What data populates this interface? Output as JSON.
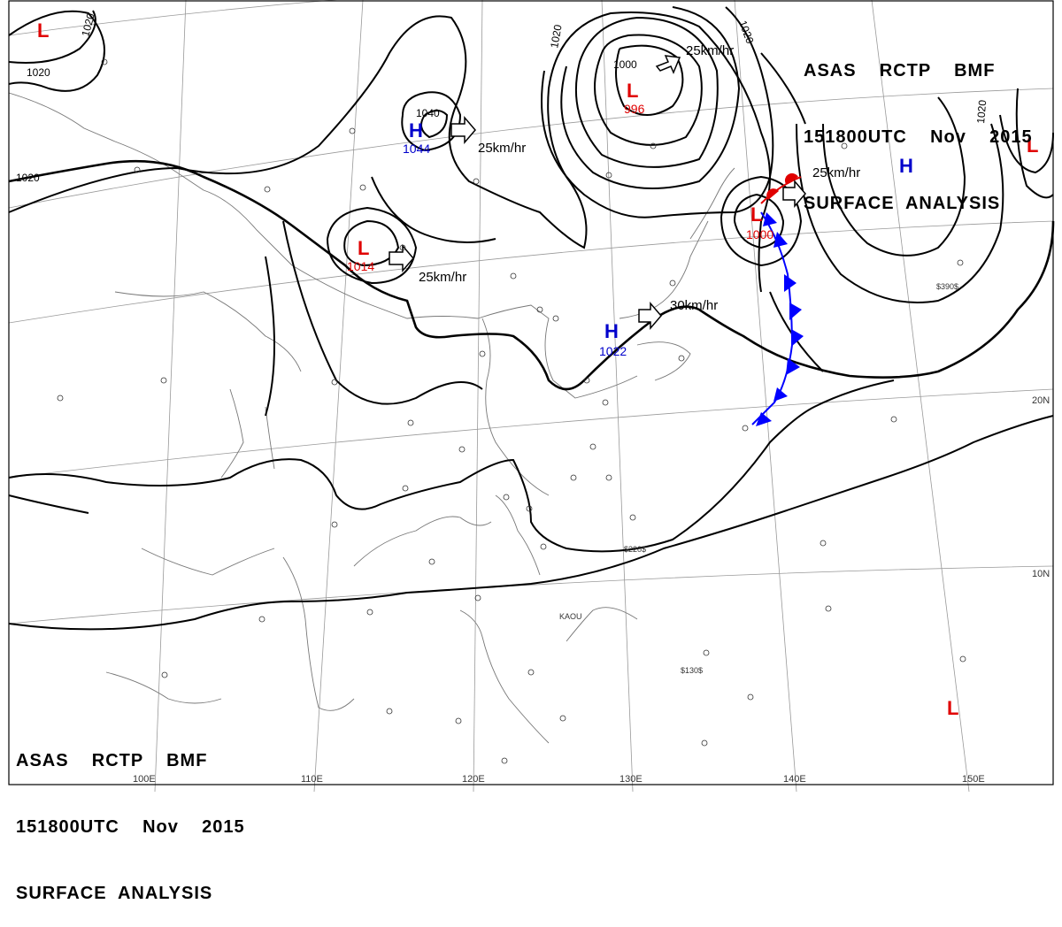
{
  "header": {
    "top_right": [
      "ASAS    RCTP    BMF",
      "151800UTC    Nov    2015",
      "SURFACE  ANALYSIS"
    ],
    "bottom_left": [
      "ASAS    RCTP    BMF",
      "151800UTC    Nov    2015",
      "SURFACE  ANALYSIS"
    ]
  },
  "pressure_centers": [
    {
      "type": "L",
      "value": "",
      "color": "#e00000"
    },
    {
      "type": "H",
      "value": "1044",
      "color": "#0000cc"
    },
    {
      "type": "L",
      "value": "1014",
      "color": "#e00000"
    },
    {
      "type": "L",
      "value": "996",
      "color": "#e00000"
    },
    {
      "type": "L",
      "value": "1000",
      "color": "#e00000"
    },
    {
      "type": "H",
      "value": "1022",
      "color": "#0000cc"
    },
    {
      "type": "H",
      "value": "",
      "color": "#0000cc"
    },
    {
      "type": "L",
      "value": "",
      "color": "#e00000"
    },
    {
      "type": "L",
      "value": "",
      "color": "#e00000"
    }
  ],
  "isobar_labels": [
    "1020",
    "1020",
    "1020",
    "1040",
    "1020",
    "1000",
    "1020",
    "1020"
  ],
  "motion_arrows": [
    "25km/hr",
    "25km/hr",
    "25km/hr",
    "30km/hr",
    "25km/hr"
  ],
  "longitude_labels": [
    "100E",
    "110E",
    "120E",
    "130E",
    "140E",
    "150E"
  ],
  "latitude_labels": [
    "20N",
    "10N"
  ],
  "station_labels": [
    "KAOU",
    "$220$",
    "$130$",
    "$390$"
  ],
  "colors": {
    "low": "#e00000",
    "high": "#0000cc",
    "cold_front": "#0000ff",
    "warm_front": "#e00000",
    "isobar": "#000000"
  }
}
